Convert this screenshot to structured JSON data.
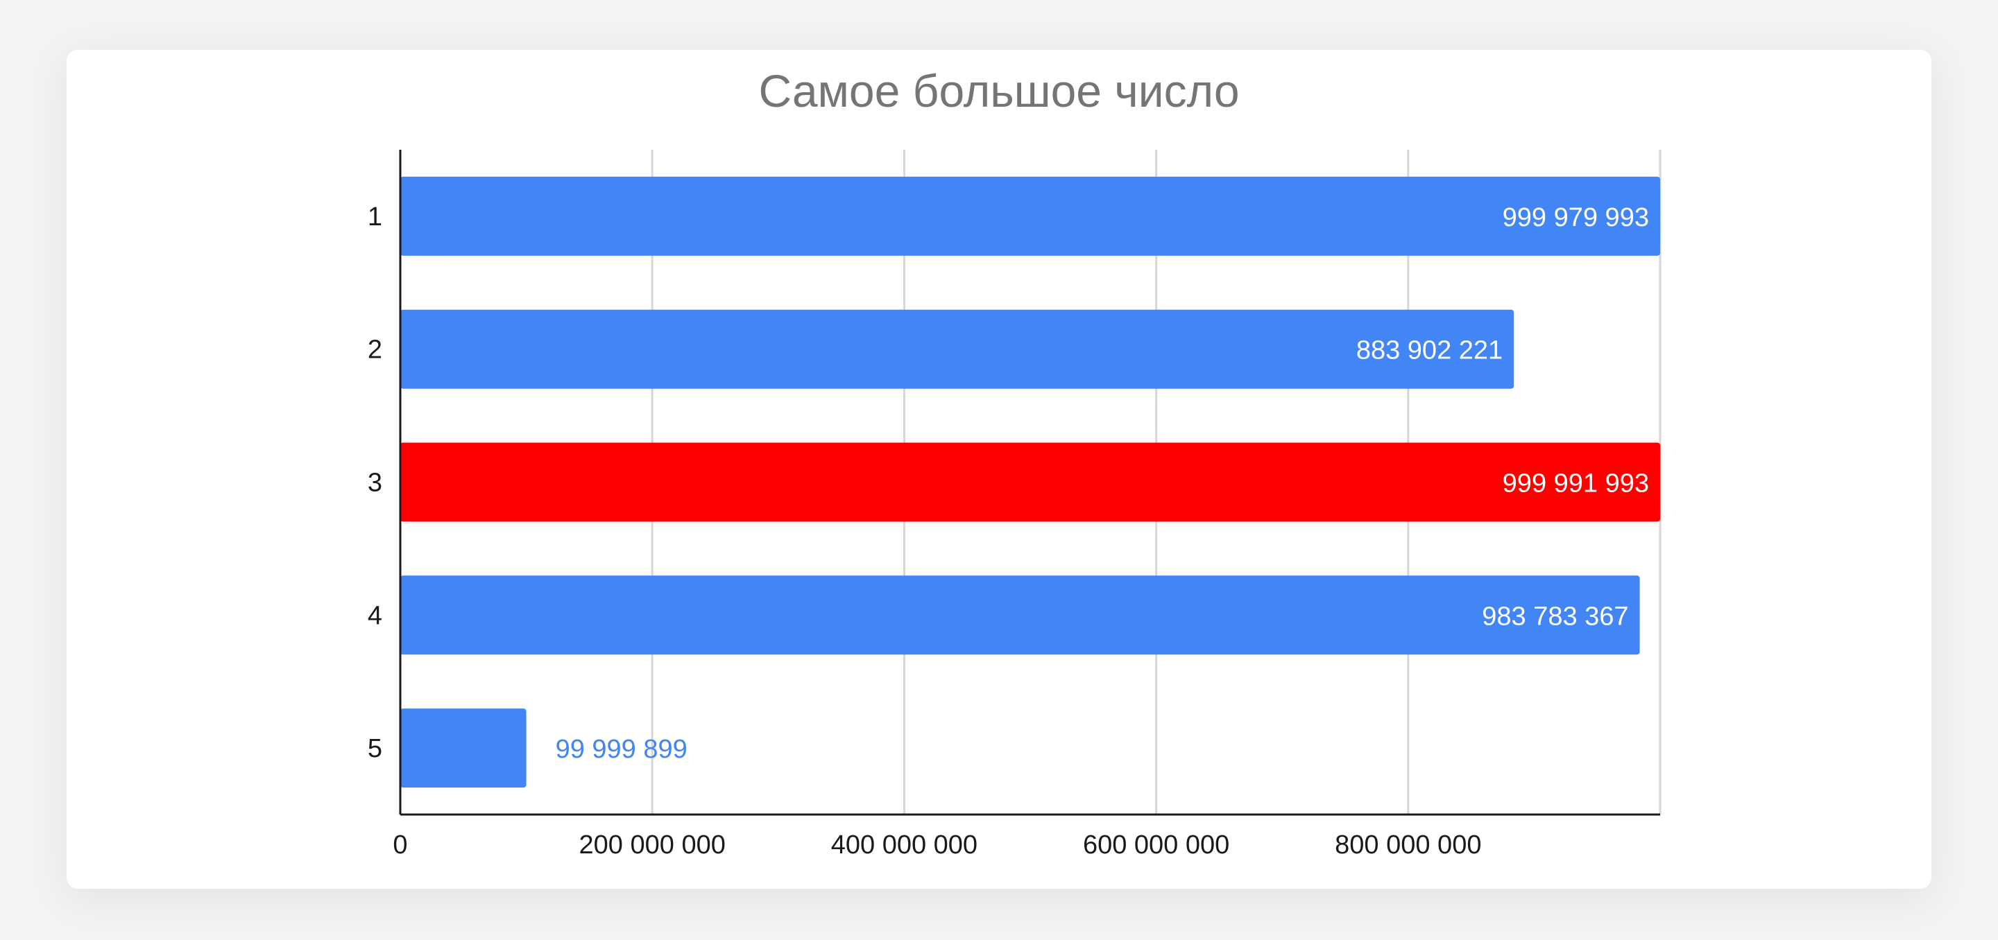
{
  "chart_data": {
    "type": "bar",
    "orientation": "horizontal",
    "title": "Самое большое число",
    "xlabel": "",
    "ylabel": "",
    "categories": [
      "1",
      "2",
      "3",
      "4",
      "5"
    ],
    "values": [
      999979993,
      883902221,
      999991993,
      983783367,
      99999899
    ],
    "data_labels": [
      "999 979 993",
      "883 902 221",
      "999 991 993",
      "983 783 367",
      "99 999 899"
    ],
    "bar_colors": [
      "#4285f4",
      "#4285f4",
      "#ff0000",
      "#4285f4",
      "#4285f4"
    ],
    "xlim": [
      0,
      999991993
    ],
    "xticks": [
      0,
      200000000,
      400000000,
      600000000,
      800000000
    ],
    "xtick_labels": [
      "0",
      "200 000 000",
      "400 000 000",
      "600 000 000",
      "800 000 000"
    ],
    "grid": true,
    "legend": "none",
    "colors": {
      "bar": "#4285f4",
      "highlight": "#ff0000",
      "label_inside": "#ffffff",
      "label_outside": "#4285f4",
      "title": "#757575",
      "grid": "#d6d6d6",
      "axis": "#1a1a1a"
    }
  }
}
